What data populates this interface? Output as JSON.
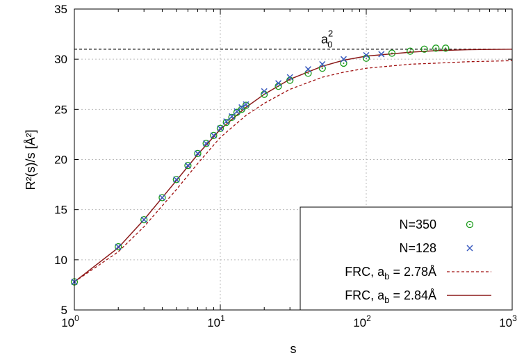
{
  "chart_data": {
    "type": "scatter",
    "xlabel": "s",
    "ylabel": "R²(s)/s  [Å²]",
    "xscale": "log",
    "xlim": [
      1,
      1000
    ],
    "ylim": [
      5,
      35
    ],
    "grid": true,
    "x_tick_labels": [
      {
        "base": "10",
        "exp": "0"
      },
      {
        "base": "10",
        "exp": "1"
      },
      {
        "base": "10",
        "exp": "2"
      },
      {
        "base": "10",
        "exp": "3"
      }
    ],
    "y_tick_labels": [
      "5",
      "10",
      "15",
      "20",
      "25",
      "30",
      "35"
    ],
    "reference_line": {
      "y": 31.0,
      "label_base": "a",
      "label_sub": "0",
      "label_sup": "2",
      "color": "#000000"
    },
    "legend_position": "bottom-right",
    "series": [
      {
        "name": "N=350",
        "kind": "points",
        "marker": "circle-dot",
        "color": "#1a9c1a",
        "x": [
          1,
          2,
          3,
          4,
          5,
          6,
          7,
          8,
          9,
          10,
          11,
          12,
          13,
          14,
          15,
          20,
          25,
          30,
          40,
          50,
          70,
          100,
          150,
          200,
          250,
          300,
          350
        ],
        "y": [
          7.8,
          11.3,
          14.0,
          16.2,
          18.0,
          19.4,
          20.6,
          21.6,
          22.4,
          23.1,
          23.7,
          24.2,
          24.7,
          25.0,
          25.4,
          26.5,
          27.3,
          27.9,
          28.6,
          29.1,
          29.6,
          30.1,
          30.6,
          30.8,
          31.0,
          31.1,
          31.1
        ]
      },
      {
        "name": "N=128",
        "kind": "points",
        "marker": "cross",
        "color": "#3b5bbf",
        "x": [
          1,
          2,
          3,
          4,
          5,
          6,
          7,
          8,
          9,
          10,
          11,
          12,
          13,
          14,
          15,
          20,
          25,
          30,
          40,
          50,
          70,
          100,
          127
        ],
        "y": [
          7.8,
          11.3,
          14.0,
          16.2,
          18.0,
          19.4,
          20.6,
          21.6,
          22.4,
          23.1,
          23.8,
          24.3,
          24.8,
          25.2,
          25.5,
          26.8,
          27.6,
          28.2,
          29.0,
          29.5,
          30.0,
          30.4,
          30.5
        ]
      },
      {
        "name": "FRC, a_b = 2.78Å",
        "legend_base": "FRC, a",
        "legend_sub": "b",
        "legend_rest": " = 2.78Å",
        "kind": "line",
        "dash": "dashed",
        "color": "#a01010",
        "x": [
          1,
          2,
          3,
          5,
          7,
          10,
          15,
          20,
          30,
          50,
          70,
          100,
          200,
          300,
          500,
          1000
        ],
        "y": [
          7.8,
          10.8,
          13.3,
          17.0,
          19.6,
          22.2,
          24.4,
          25.6,
          27.0,
          28.2,
          28.7,
          29.1,
          29.5,
          29.6,
          29.75,
          29.85
        ]
      },
      {
        "name": "FRC, a_b = 2.84Å",
        "legend_base": "FRC, a",
        "legend_sub": "b",
        "legend_rest": " = 2.84Å",
        "kind": "line",
        "dash": "solid",
        "color": "#8b1a1a",
        "x": [
          1,
          2,
          3,
          5,
          7,
          10,
          15,
          20,
          30,
          50,
          70,
          100,
          200,
          300,
          500,
          1000
        ],
        "y": [
          7.8,
          11.2,
          14.0,
          17.9,
          20.5,
          23.0,
          25.2,
          26.5,
          28.0,
          29.3,
          29.9,
          30.3,
          30.7,
          30.85,
          30.95,
          31.0
        ]
      }
    ]
  }
}
